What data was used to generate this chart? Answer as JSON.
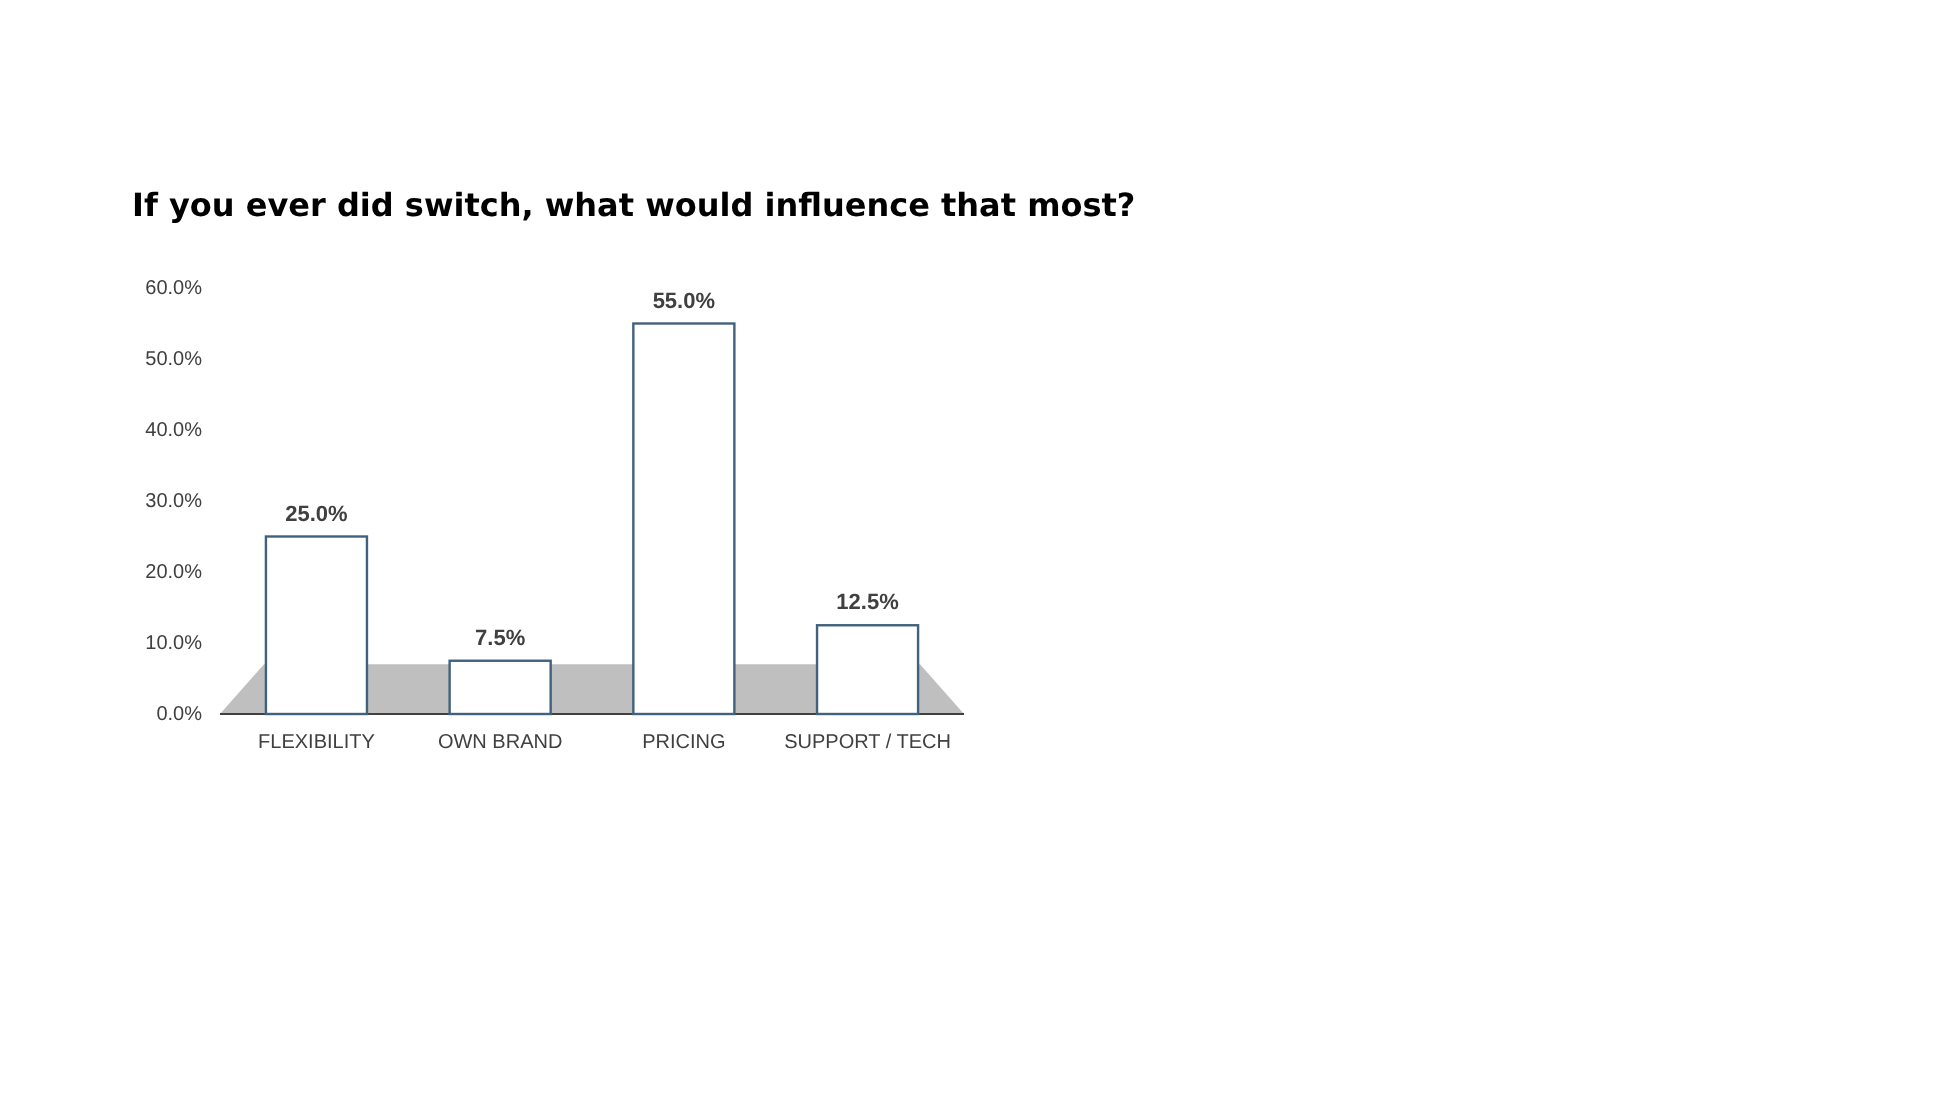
{
  "chart_data": {
    "type": "bar",
    "title": "If you ever did switch, what would influence that most?",
    "categories": [
      "FLEXIBILITY",
      "OWN BRAND",
      "PRICING",
      "SUPPORT / TECH"
    ],
    "values": [
      25,
      7.5,
      55,
      12.5
    ],
    "value_labels": [
      "25.0%",
      "7.5%",
      "55.0%",
      "12.5%"
    ],
    "color": "#ffffff",
    "ylim": [
      0,
      60
    ],
    "yticks": [
      {
        "value": 0,
        "label": "0.0%"
      },
      {
        "value": 10,
        "label": "10.0%"
      },
      {
        "value": 20,
        "label": "20.0%"
      },
      {
        "value": 30,
        "label": "30.0%"
      },
      {
        "value": 40,
        "label": "40.0%"
      },
      {
        "value": 50,
        "label": "50.0%"
      },
      {
        "value": 60,
        "label": "60.0%"
      }
    ],
    "grid": false
  }
}
